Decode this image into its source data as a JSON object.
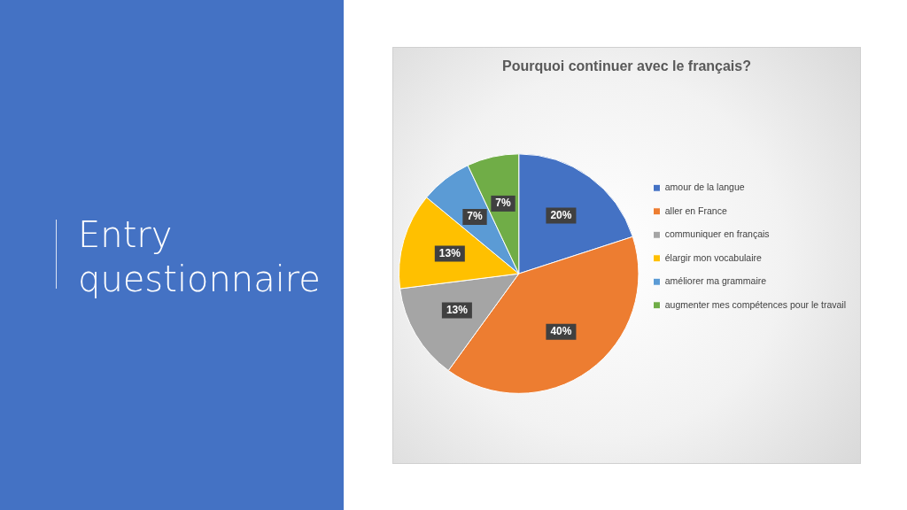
{
  "chart_data": {
    "type": "pie",
    "title": "Pourquoi continuer avec le français?",
    "subtitle": "Entry questionnaire",
    "categories": [
      "amour de la langue",
      "aller en France",
      "communiquer en français",
      "élargir mon vocabulaire",
      "améliorer ma grammaire",
      "augmenter mes compétences pour le travail"
    ],
    "values": [
      20,
      40,
      13,
      13,
      7,
      7
    ],
    "colors": [
      "#4472c4",
      "#ed7d31",
      "#a5a5a5",
      "#ffc000",
      "#5b9bd5",
      "#70ad47"
    ],
    "value_labels": [
      "20%",
      "40%",
      "13%",
      "13%",
      "7%",
      "7%"
    ],
    "legend": "right"
  }
}
